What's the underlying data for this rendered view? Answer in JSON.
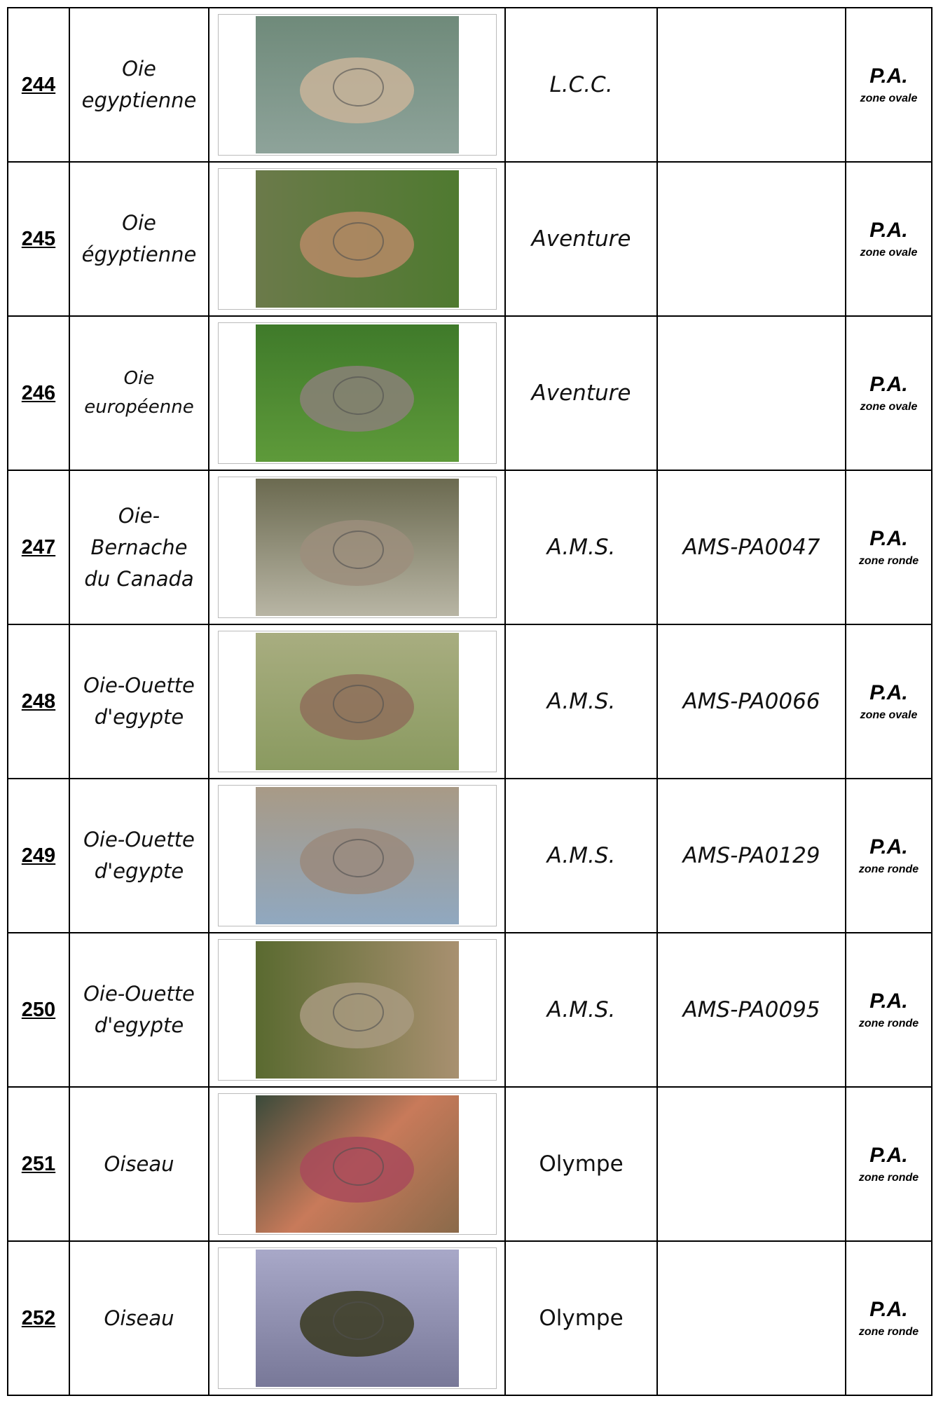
{
  "table": {
    "rows": [
      {
        "number": "244",
        "name": [
          "Oie",
          "egyptienne"
        ],
        "maker": "L.C.C.",
        "ref": null,
        "category": "P.A.",
        "zone": "zone ovale"
      },
      {
        "number": "245",
        "name": [
          "Oie",
          "égyptienne"
        ],
        "maker": "Aventure",
        "ref": null,
        "category": "P.A.",
        "zone": "zone ovale"
      },
      {
        "number": "246",
        "name": [
          "Oie",
          "européenne"
        ],
        "maker": "Aventure",
        "ref": null,
        "category": "P.A.",
        "zone": "zone ovale"
      },
      {
        "number": "247",
        "name": [
          "Oie-",
          "Bernache",
          "du Canada"
        ],
        "maker": "A.M.S.",
        "ref": "AMS-PA0047",
        "category": "P.A.",
        "zone": "zone ronde"
      },
      {
        "number": "248",
        "name": [
          "Oie-Ouette",
          "d'egypte"
        ],
        "maker": "A.M.S.",
        "ref": "AMS-PA0066",
        "category": "P.A.",
        "zone": "zone ovale"
      },
      {
        "number": "249",
        "name": [
          "Oie-Ouette",
          "d'egypte"
        ],
        "maker": "A.M.S.",
        "ref": "AMS-PA0129",
        "category": "P.A.",
        "zone": "zone ronde"
      },
      {
        "number": "250",
        "name": [
          "Oie-Ouette",
          "d'egypte"
        ],
        "maker": "A.M.S.",
        "ref": "AMS-PA0095",
        "category": "P.A.",
        "zone": "zone ronde"
      },
      {
        "number": "251",
        "name": [
          "Oiseau"
        ],
        "maker": "Olympe",
        "ref": null,
        "category": "P.A.",
        "zone": "zone ronde"
      },
      {
        "number": "252",
        "name": [
          "Oiseau"
        ],
        "maker": "Olympe",
        "ref": null,
        "category": "P.A.",
        "zone": "zone ronde"
      }
    ]
  }
}
